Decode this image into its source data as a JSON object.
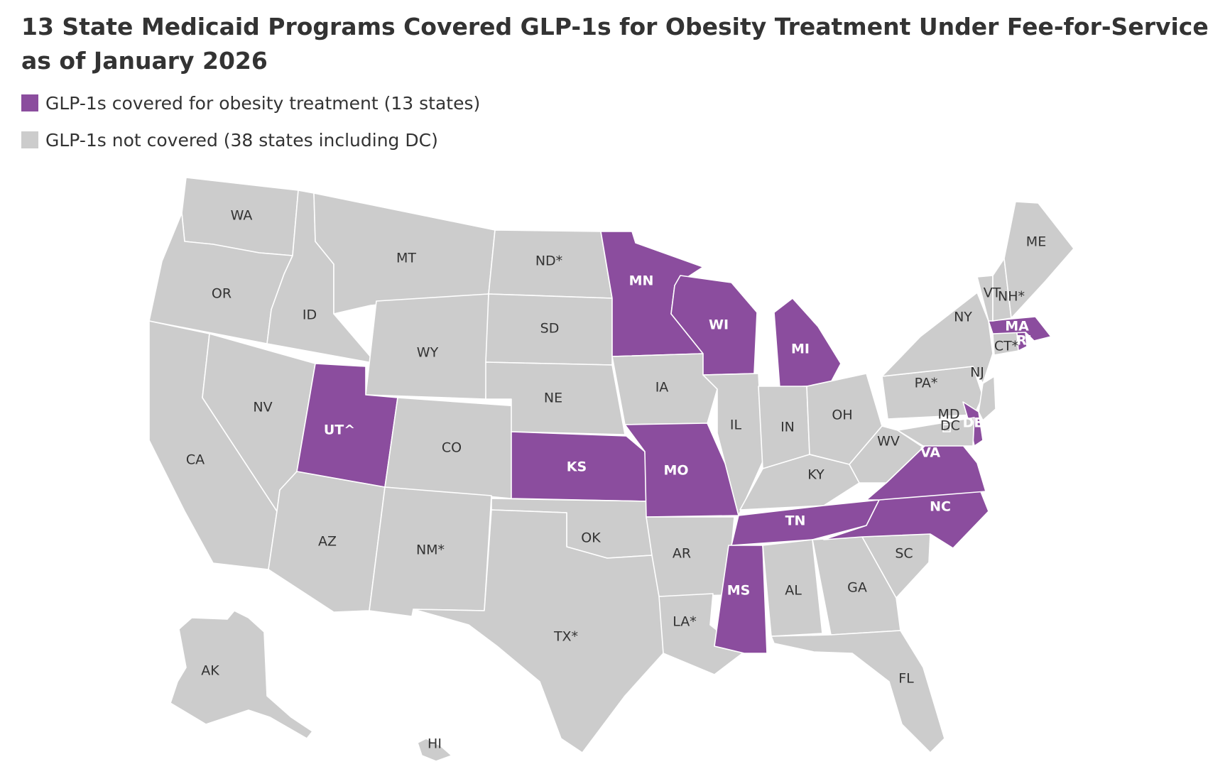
{
  "title": "13 State Medicaid Programs Covered GLP-1s for Obesity Treatment Under Fee-for-Service as of January 2026",
  "legend": [
    {
      "label": "GLP-1s covered for obesity treatment (13 states)",
      "color": "#8b4d9e",
      "key": "covered"
    },
    {
      "label": "GLP-1s not covered (38 states including DC)",
      "color": "#cccccc",
      "key": "not"
    }
  ],
  "states": [
    {
      "code": "WA",
      "label": "WA",
      "covered": false
    },
    {
      "code": "OR",
      "label": "OR",
      "covered": false
    },
    {
      "code": "CA",
      "label": "CA",
      "covered": false
    },
    {
      "code": "ID",
      "label": "ID",
      "covered": false
    },
    {
      "code": "NV",
      "label": "NV",
      "covered": false
    },
    {
      "code": "MT",
      "label": "MT",
      "covered": false
    },
    {
      "code": "WY",
      "label": "WY",
      "covered": false
    },
    {
      "code": "UT",
      "label": "UT^",
      "covered": true
    },
    {
      "code": "AZ",
      "label": "AZ",
      "covered": false
    },
    {
      "code": "CO",
      "label": "CO",
      "covered": false
    },
    {
      "code": "NM",
      "label": "NM*",
      "covered": false
    },
    {
      "code": "ND",
      "label": "ND*",
      "covered": false
    },
    {
      "code": "SD",
      "label": "SD",
      "covered": false
    },
    {
      "code": "NE",
      "label": "NE",
      "covered": false
    },
    {
      "code": "KS",
      "label": "KS",
      "covered": true
    },
    {
      "code": "OK",
      "label": "OK",
      "covered": false
    },
    {
      "code": "TX",
      "label": "TX*",
      "covered": false
    },
    {
      "code": "MN",
      "label": "MN",
      "covered": true
    },
    {
      "code": "IA",
      "label": "IA",
      "covered": false
    },
    {
      "code": "MO",
      "label": "MO",
      "covered": true
    },
    {
      "code": "AR",
      "label": "AR",
      "covered": false
    },
    {
      "code": "LA",
      "label": "LA*",
      "covered": false
    },
    {
      "code": "WI",
      "label": "WI",
      "covered": true
    },
    {
      "code": "IL",
      "label": "IL",
      "covered": false
    },
    {
      "code": "MI",
      "label": "MI",
      "covered": true
    },
    {
      "code": "IN",
      "label": "IN",
      "covered": false
    },
    {
      "code": "OH",
      "label": "OH",
      "covered": false
    },
    {
      "code": "KY",
      "label": "KY",
      "covered": false
    },
    {
      "code": "TN",
      "label": "TN",
      "covered": true
    },
    {
      "code": "MS",
      "label": "MS",
      "covered": true
    },
    {
      "code": "AL",
      "label": "AL",
      "covered": false
    },
    {
      "code": "GA",
      "label": "GA",
      "covered": false
    },
    {
      "code": "FL",
      "label": "FL",
      "covered": false
    },
    {
      "code": "SC",
      "label": "SC",
      "covered": false
    },
    {
      "code": "NC",
      "label": "NC",
      "covered": true
    },
    {
      "code": "VA",
      "label": "VA",
      "covered": true
    },
    {
      "code": "WV",
      "label": "WV",
      "covered": false
    },
    {
      "code": "PA",
      "label": "PA*",
      "covered": false
    },
    {
      "code": "NY",
      "label": "NY",
      "covered": false
    },
    {
      "code": "NJ",
      "label": "NJ",
      "covered": false
    },
    {
      "code": "DE",
      "label": "DE",
      "covered": true
    },
    {
      "code": "MD",
      "label": "MD",
      "covered": false
    },
    {
      "code": "DC",
      "label": "DC",
      "covered": false
    },
    {
      "code": "CT",
      "label": "CT*",
      "covered": false
    },
    {
      "code": "RI",
      "label": "RI",
      "covered": true
    },
    {
      "code": "MA",
      "label": "MA",
      "covered": true
    },
    {
      "code": "VT",
      "label": "VT",
      "covered": false
    },
    {
      "code": "NH",
      "label": "NH*",
      "covered": false
    },
    {
      "code": "ME",
      "label": "ME",
      "covered": false
    },
    {
      "code": "AK",
      "label": "AK",
      "covered": false
    },
    {
      "code": "HI",
      "label": "HI",
      "covered": false
    }
  ]
}
